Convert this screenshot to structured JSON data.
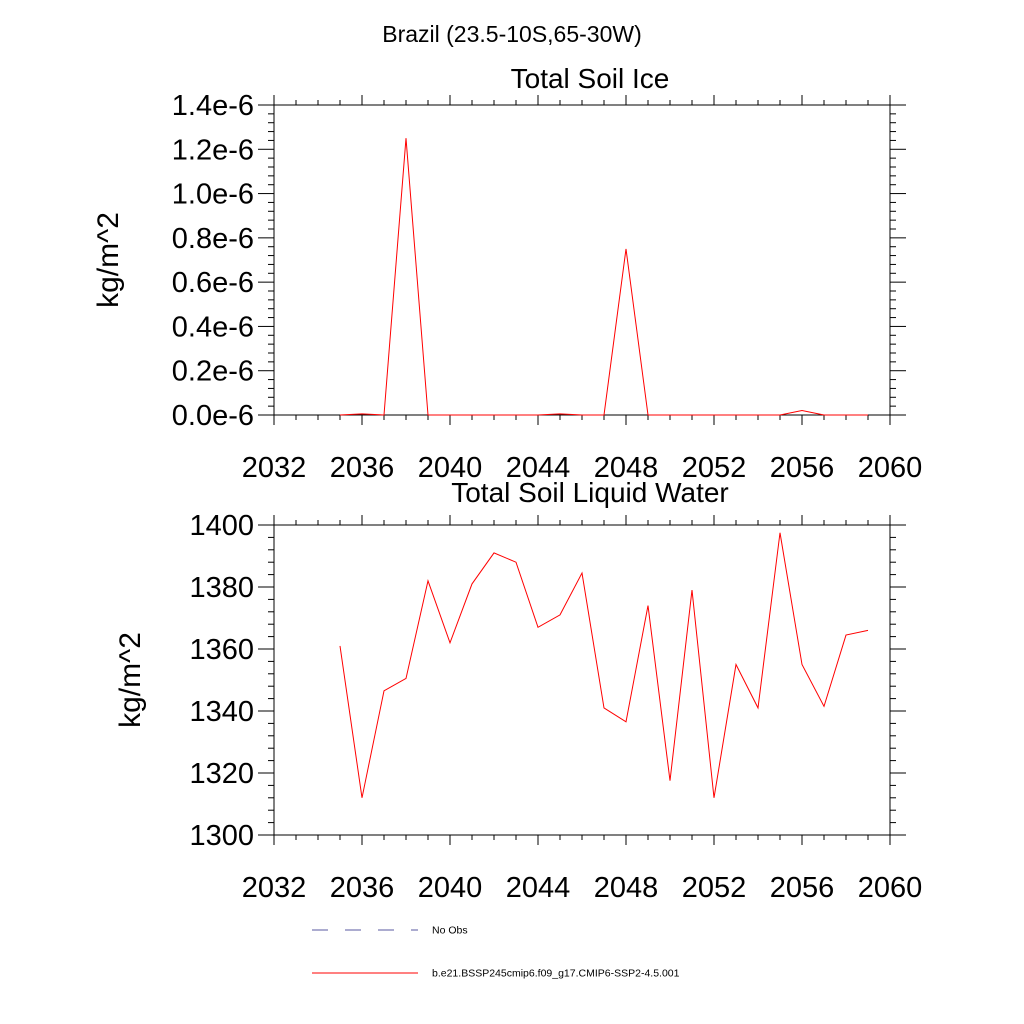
{
  "figure_title": "Brazil (23.5-10S,65-30W)",
  "chart_data": [
    {
      "type": "line",
      "title": "Total Soil Ice",
      "xlabel": "",
      "ylabel": "kg/m^2",
      "xlim": [
        2032,
        2060
      ],
      "ylim": [
        0,
        1.4e-06
      ],
      "x_ticks": [
        2032,
        2036,
        2040,
        2044,
        2048,
        2052,
        2056,
        2060
      ],
      "x_tick_labels": [
        "2032",
        "2036",
        "2040",
        "2044",
        "2048",
        "2052",
        "2056",
        "2060"
      ],
      "y_ticks": [
        0,
        2e-07,
        4e-07,
        6e-07,
        8e-07,
        1e-06,
        1.2e-06,
        1.4e-06
      ],
      "y_tick_labels": [
        "0.0e-6",
        "0.2e-6",
        "0.4e-6",
        "0.6e-6",
        "0.8e-6",
        "1.0e-6",
        "1.2e-6",
        "1.4e-6"
      ],
      "grid": false,
      "series": [
        {
          "name": "b.e21.BSSP245cmip6.f09_g17.CMIP6-SSP2-4.5.001",
          "color": "#ff0000",
          "x": [
            2035,
            2036,
            2037,
            2038,
            2039,
            2040,
            2041,
            2042,
            2043,
            2044,
            2045,
            2046,
            2047,
            2048,
            2049,
            2050,
            2051,
            2052,
            2053,
            2054,
            2055,
            2056,
            2057,
            2058,
            2059
          ],
          "values": [
            0,
            5e-09,
            0,
            1.25e-06,
            0,
            0,
            0,
            0,
            0,
            0,
            5e-09,
            0,
            0,
            7.5e-07,
            0,
            0,
            0,
            0,
            0,
            0,
            0,
            2e-08,
            0,
            0,
            0
          ]
        }
      ]
    },
    {
      "type": "line",
      "title": "Total Soil Liquid Water",
      "xlabel": "",
      "ylabel": "kg/m^2",
      "xlim": [
        2032,
        2060
      ],
      "ylim": [
        1300,
        1400
      ],
      "x_ticks": [
        2032,
        2036,
        2040,
        2044,
        2048,
        2052,
        2056,
        2060
      ],
      "x_tick_labels": [
        "2032",
        "2036",
        "2040",
        "2044",
        "2048",
        "2052",
        "2056",
        "2060"
      ],
      "y_ticks": [
        1300,
        1320,
        1340,
        1360,
        1380,
        1400
      ],
      "y_tick_labels": [
        "1300",
        "1320",
        "1340",
        "1360",
        "1380",
        "1400"
      ],
      "grid": false,
      "series": [
        {
          "name": "b.e21.BSSP245cmip6.f09_g17.CMIP6-SSP2-4.5.001",
          "color": "#ff0000",
          "x": [
            2035,
            2036,
            2037,
            2038,
            2039,
            2040,
            2041,
            2042,
            2043,
            2044,
            2045,
            2046,
            2047,
            2048,
            2049,
            2050,
            2051,
            2052,
            2053,
            2054,
            2055,
            2056,
            2057,
            2058,
            2059
          ],
          "values": [
            1361,
            1312,
            1346.5,
            1350.5,
            1382,
            1362,
            1381,
            1391,
            1388,
            1367,
            1371,
            1384.5,
            1341,
            1336.5,
            1374,
            1317.5,
            1379,
            1312,
            1355,
            1341,
            1397.5,
            1355,
            1341.5,
            1364.5,
            1366
          ]
        }
      ]
    }
  ],
  "legend": {
    "placement": "bottom",
    "items": [
      {
        "label": "No Obs",
        "color": "#5a5aa0",
        "style": "dashed"
      },
      {
        "label": "b.e21.BSSP245cmip6.f09_g17.CMIP6-SSP2-4.5.001",
        "color": "#ff0000",
        "style": "solid"
      }
    ]
  }
}
